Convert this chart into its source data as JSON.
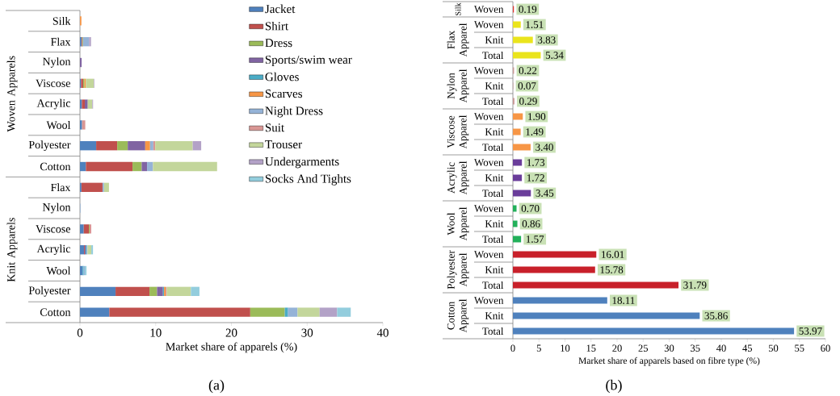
{
  "chart_data": [
    {
      "type": "bar",
      "orientation": "horizontal",
      "stacked": true,
      "categories": [
        "Silk",
        "Flax",
        "Nylon",
        "Viscose",
        "Acrylic",
        "Wool",
        "Polyester",
        "Cotton",
        "Flax",
        "Nylon",
        "Viscose",
        "Acrylic",
        "Wool",
        "Polyester",
        "Cotton"
      ],
      "series": [
        {
          "name": "Jacket",
          "color": "#4f81bd",
          "values": [
            null,
            0.2,
            null,
            0.14,
            0.25,
            0.28,
            2.14,
            0.78,
            0.2,
            null,
            0.5,
            0.53,
            0.35,
            4.7,
            3.88
          ]
        },
        {
          "name": "Shirt",
          "color": "#c0504d",
          "values": [
            null,
            0.1,
            null,
            0.28,
            0.39,
            null,
            2.78,
            6.16,
            2.78,
            null,
            0.68,
            0.1,
            null,
            4.48,
            18.61
          ]
        },
        {
          "name": "Dress",
          "color": "#9bbb59",
          "values": [
            null,
            0.1,
            null,
            0.18,
            null,
            null,
            1.39,
            1.21,
            null,
            null,
            0.1,
            null,
            null,
            1.0,
            4.56
          ]
        },
        {
          "name": "Sports/swim wear",
          "color": "#8064a2",
          "values": [
            null,
            null,
            0.22,
            null,
            0.39,
            null,
            2.31,
            0.71,
            null,
            null,
            null,
            0.12,
            null,
            0.78,
            null
          ]
        },
        {
          "name": "Gloves",
          "color": "#4bacc6",
          "values": [
            null,
            null,
            null,
            null,
            null,
            null,
            null,
            null,
            null,
            null,
            null,
            0.1,
            0.15,
            0.14,
            0.43
          ]
        },
        {
          "name": "Scarves",
          "color": "#f79646",
          "values": [
            0.19,
            null,
            null,
            0.18,
            null,
            null,
            0.64,
            null,
            null,
            null,
            null,
            null,
            null,
            0.21,
            null
          ]
        },
        {
          "name": "Night Dress",
          "color": "#95b3d7",
          "values": [
            null,
            0.8,
            null,
            null,
            null,
            null,
            0.43,
            0.78,
            0.2,
            0.07,
            null,
            0.15,
            0.15,
            null,
            1.25
          ]
        },
        {
          "name": "Suit",
          "color": "#d99694",
          "values": [
            null,
            null,
            null,
            null,
            null,
            0.42,
            0.25,
            null,
            null,
            null,
            0.21,
            null,
            null,
            0.14,
            null
          ]
        },
        {
          "name": "Trouser",
          "color": "#c3d69b",
          "values": [
            null,
            null,
            null,
            1.05,
            0.6,
            null,
            4.95,
            8.47,
            0.65,
            null,
            null,
            0.5,
            null,
            3.2,
            2.92
          ]
        },
        {
          "name": "Undergarments",
          "color": "#b3a2c7",
          "values": [
            null,
            0.26,
            null,
            0.07,
            0.1,
            null,
            1.12,
            null,
            null,
            null,
            null,
            null,
            null,
            null,
            2.31
          ]
        },
        {
          "name": "Socks And Tights",
          "color": "#93cddd",
          "values": [
            null,
            null,
            null,
            null,
            null,
            null,
            null,
            null,
            null,
            null,
            null,
            0.22,
            0.21,
            1.13,
            1.8
          ]
        }
      ],
      "xlim": [
        0,
        40
      ],
      "xticks": [
        0,
        10,
        20,
        30,
        40
      ],
      "xlabel": "Market share of apparels (%)",
      "legend": "top right",
      "annotations": [
        "Woven Apparels",
        "Knit Apparels",
        "(a)"
      ]
    },
    {
      "type": "bar",
      "orientation": "horizontal",
      "categories": [
        "Woven",
        "Woven",
        "Knit",
        "Total",
        "Woven",
        "Knit",
        "Total",
        "Woven",
        "Knit",
        "Total",
        "Woven",
        "Knit",
        "Total",
        "Woven",
        "Knit",
        "Total",
        "Woven",
        "Knit",
        "Total",
        "Woven",
        "Knit",
        "Total"
      ],
      "values": [
        0.19,
        1.51,
        3.83,
        5.34,
        0.22,
        0.07,
        0.29,
        1.9,
        1.49,
        3.4,
        1.73,
        1.72,
        3.45,
        0.7,
        0.86,
        1.57,
        16.01,
        15.78,
        31.79,
        18.11,
        35.86,
        53.97
      ],
      "value_labels": [
        "0.19",
        "1.51",
        "3.83",
        "5.34",
        "0.22",
        "0.07",
        "0.29",
        "1.90",
        "1.49",
        "3.40",
        "1.73",
        "1.72",
        "3.45",
        "0.70",
        "0.86",
        "1.57",
        "16.01",
        "15.78",
        "31.79",
        "18.11",
        "35.86",
        "53.97"
      ],
      "colors": [
        "#e0302a",
        "#eae41c",
        "#eae41c",
        "#eae41c",
        "#c99694",
        "#c99694",
        "#c99694",
        "#f79646",
        "#f79646",
        "#f79646",
        "#6a3d9a",
        "#6a3d9a",
        "#6a3d9a",
        "#22b05a",
        "#22b05a",
        "#22b05a",
        "#c8202a",
        "#c8202a",
        "#c8202a",
        "#4f81bd",
        "#4f81bd",
        "#4f81bd"
      ],
      "xlim": [
        0,
        60
      ],
      "xticks": [
        0,
        5,
        10,
        15,
        20,
        25,
        30,
        35,
        40,
        45,
        50,
        55,
        60
      ],
      "xlabel": "Market share of apparels based on fibre type (%)",
      "annotations": [
        "Silk",
        "Flax Apparel",
        "Nylon Apparel",
        "Viscose Apparel",
        "Acrylic Apparel",
        "Wool Apparel",
        "Polyester Apparel",
        "Cotton Apparel",
        "(b)"
      ]
    }
  ]
}
